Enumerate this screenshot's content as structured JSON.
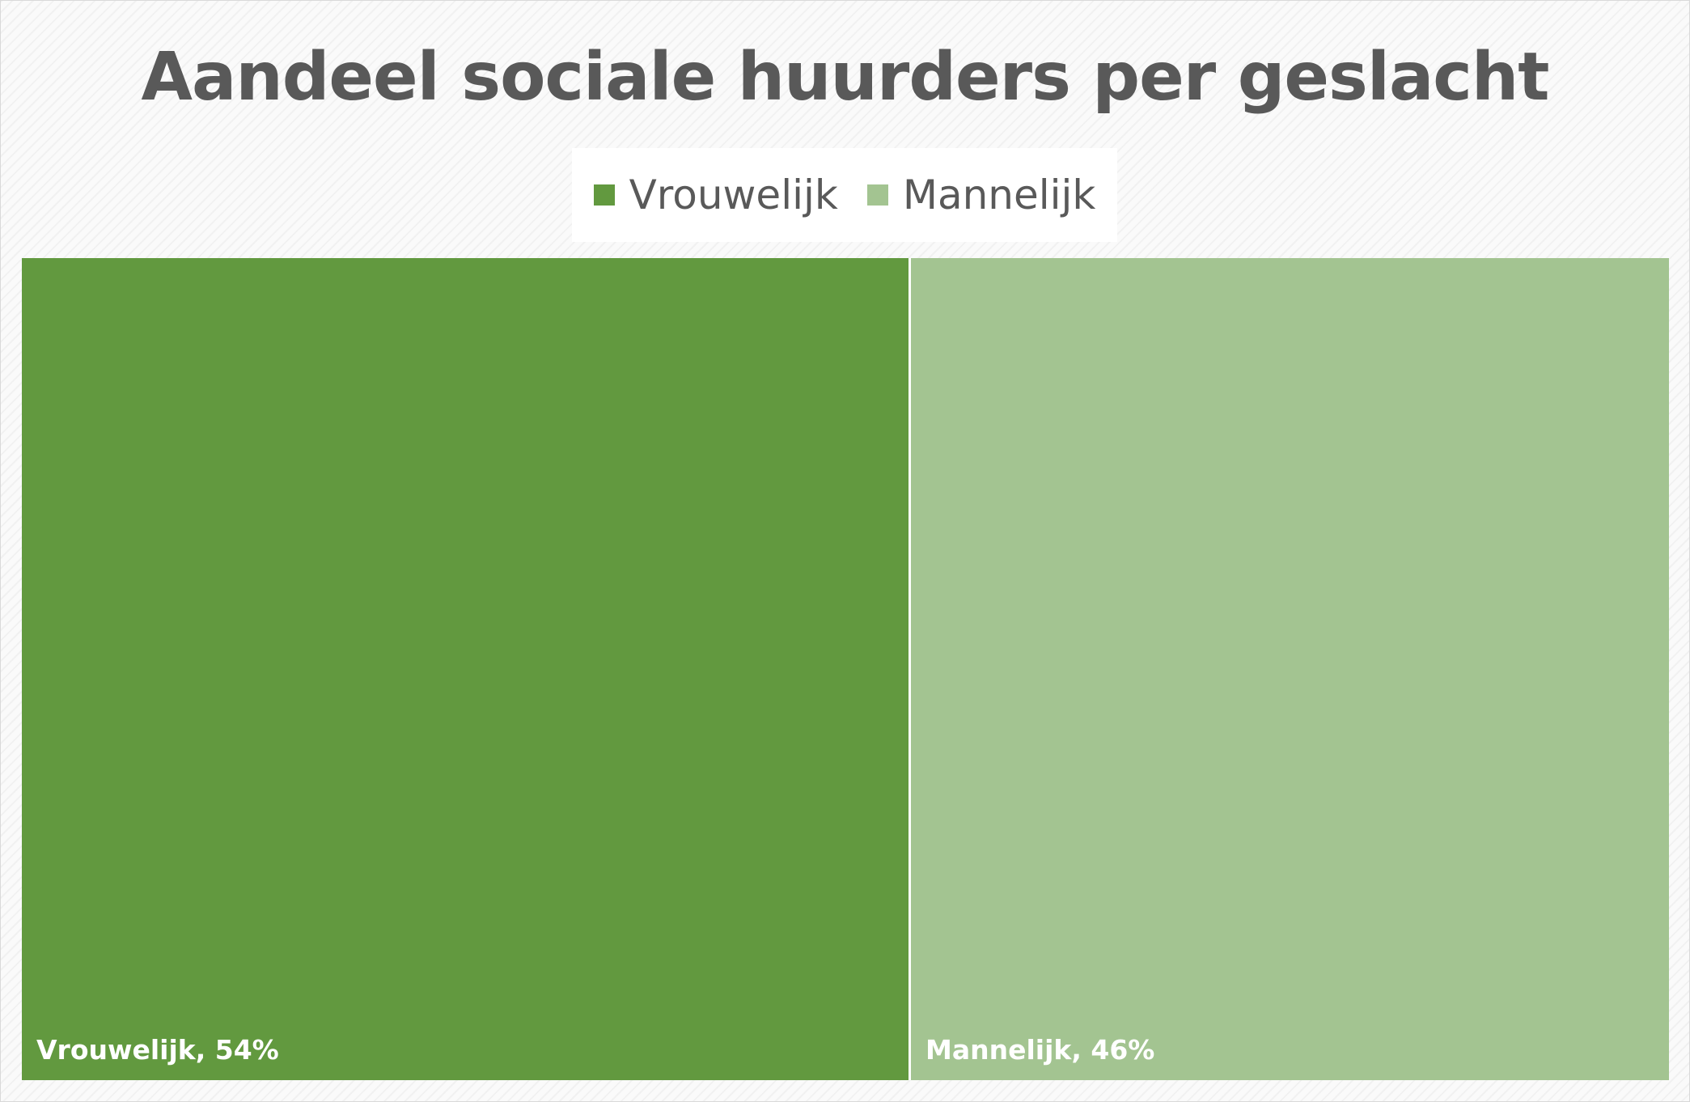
{
  "chart_data": {
    "type": "treemap",
    "title": "Aandeel sociale huurders per geslacht",
    "categories": [
      "Vrouwelijk",
      "Mannelijk"
    ],
    "values": [
      54,
      46
    ],
    "unit": "%",
    "data_labels": [
      "Vrouwelijk, 54%",
      "Mannelijk, 46%"
    ],
    "colors": [
      "#62993f",
      "#a3c491"
    ],
    "legend": {
      "placement": "top",
      "entries": [
        "Vrouwelijk",
        "Mannelijk"
      ]
    }
  }
}
